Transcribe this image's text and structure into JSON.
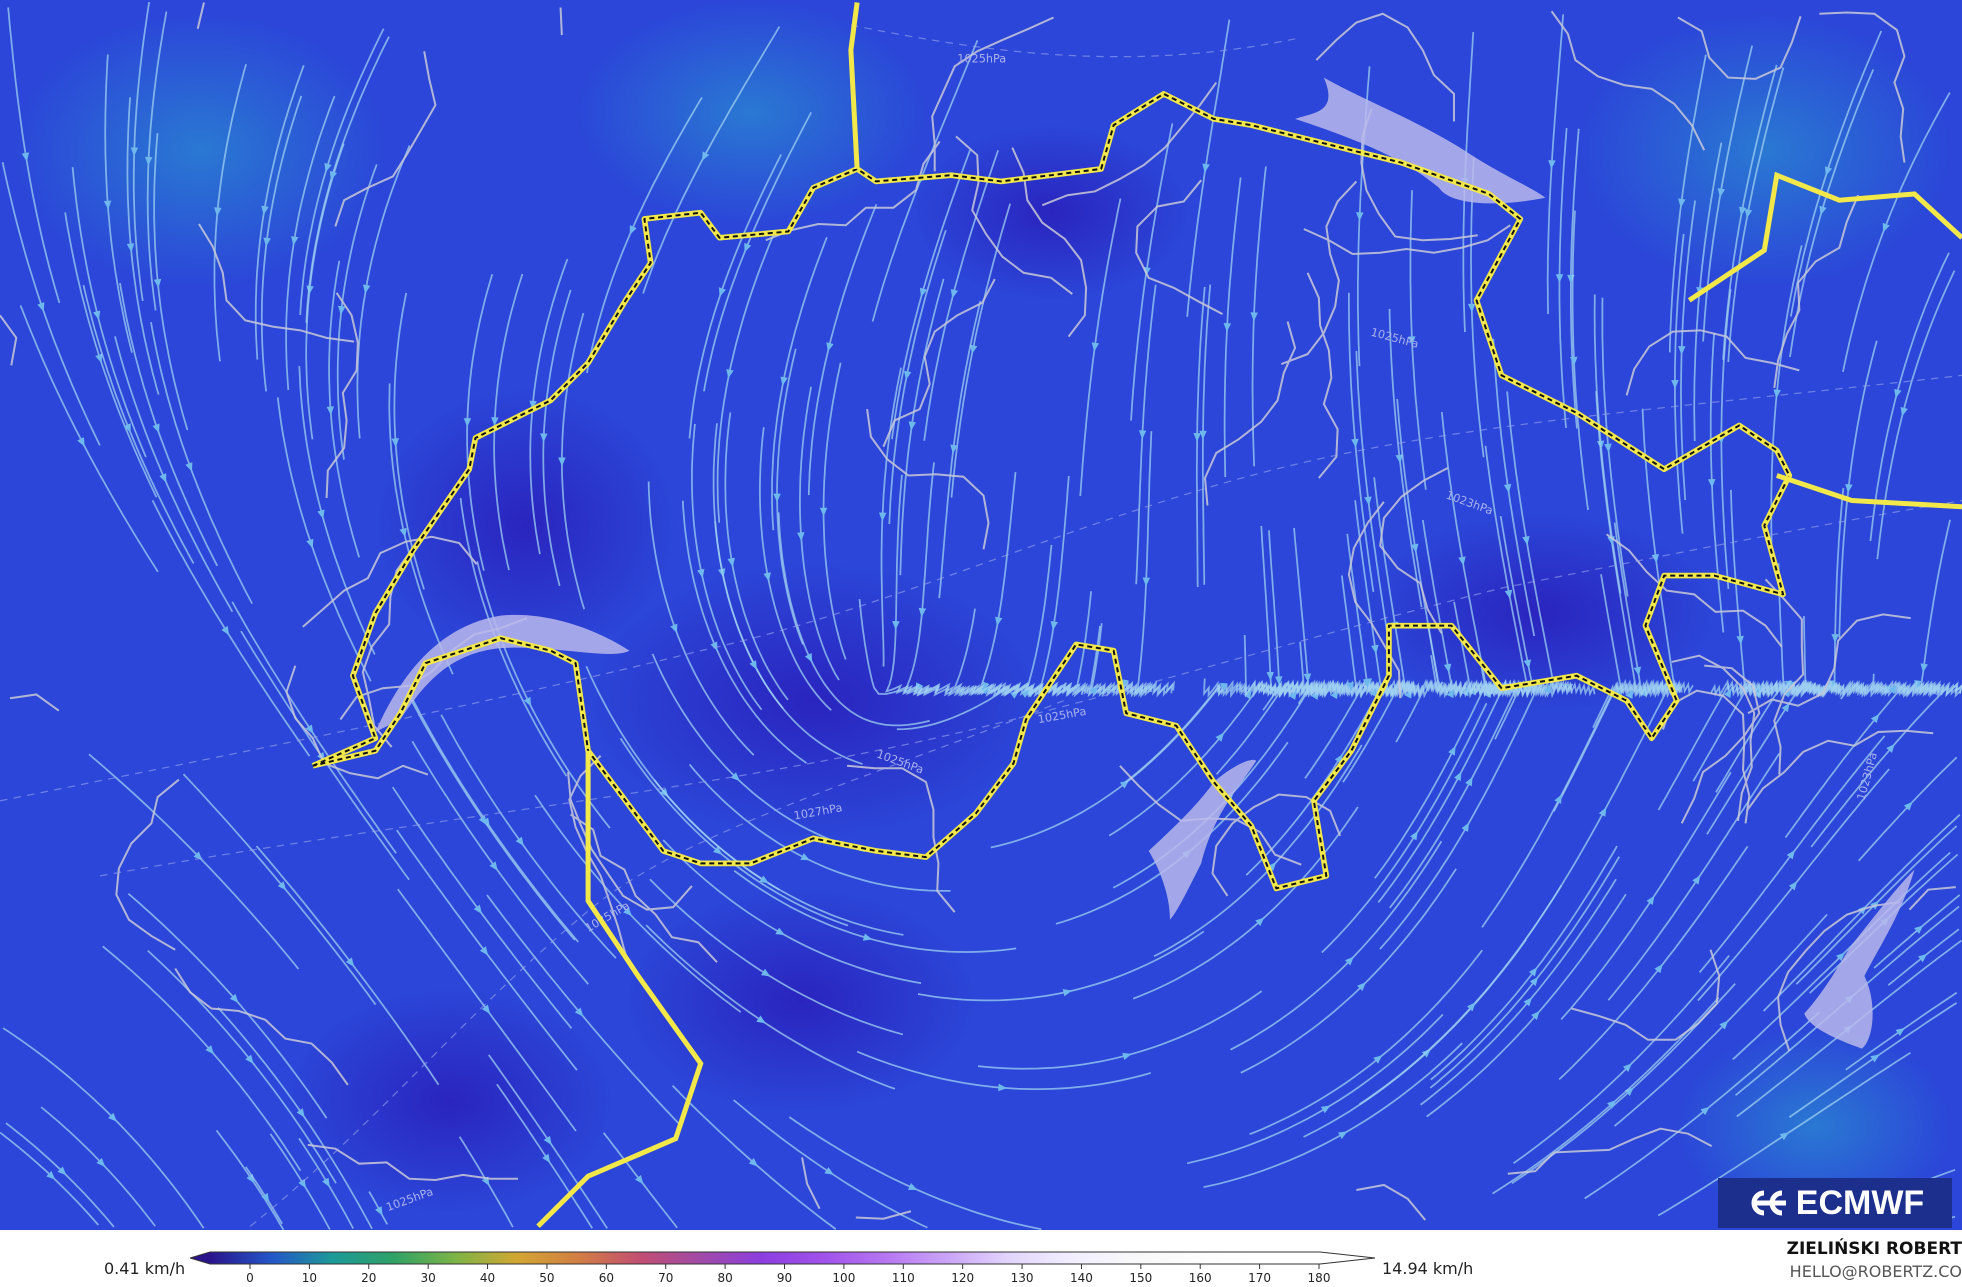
{
  "map": {
    "variable": "wind speed streamlines",
    "background_color": "#2b3fd6",
    "border_color": "#f2e84a",
    "isobar_labels": [
      "1025hPa",
      "1027hPa",
      "1025hPa",
      "1025hPa",
      "1023hPa",
      "1025hPa",
      "1025hPa",
      "1025hPa",
      "1023hPa"
    ]
  },
  "logo": {
    "text": "ECMWF"
  },
  "legend": {
    "min_label": "0.41 km/h",
    "max_label": "14.94 km/h",
    "ticks": [
      "0",
      "10",
      "20",
      "30",
      "40",
      "50",
      "60",
      "70",
      "80",
      "90",
      "100",
      "110",
      "120",
      "130",
      "140",
      "150",
      "160",
      "170",
      "180"
    ],
    "colors": [
      "#2a148c",
      "#2456c8",
      "#1c9a98",
      "#2fa266",
      "#7db446",
      "#d2a632",
      "#d27e44",
      "#c24e72",
      "#a04aa8",
      "#8c3ee0",
      "#a052ea",
      "#b676f2",
      "#caa4f8",
      "#e2d4fc",
      "#f2eeff",
      "#f8f8fa",
      "#fcfcfc",
      "#ffffff",
      "#ffffff"
    ]
  },
  "credit": {
    "author": "ZIELIŃSKI ROBERT",
    "email": "HELLO@ROBERTZ.CO"
  }
}
